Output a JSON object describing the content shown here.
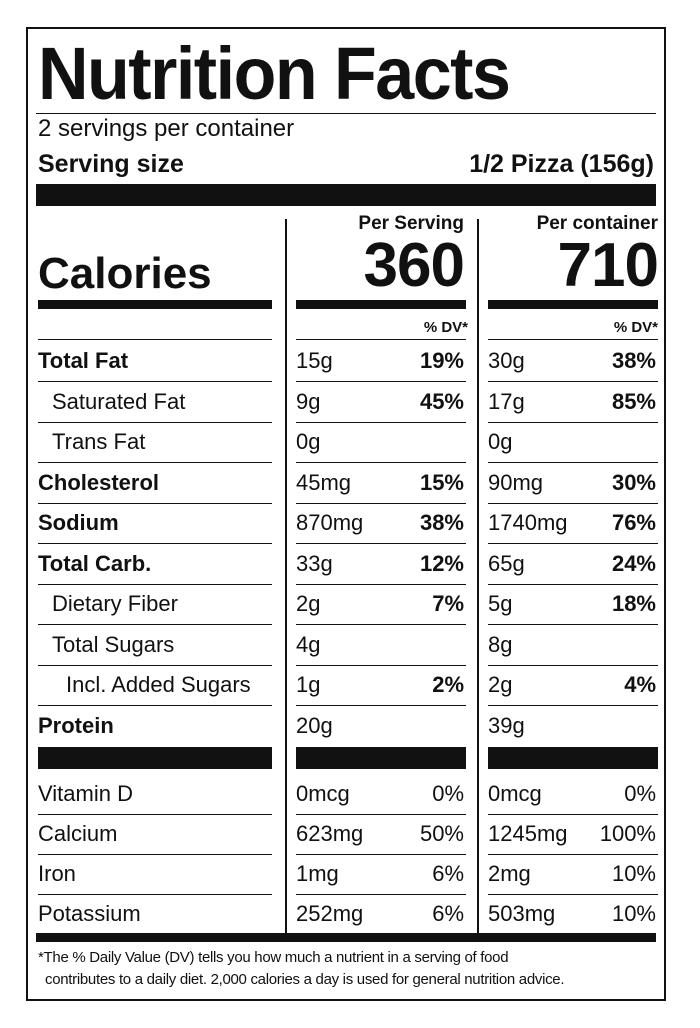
{
  "title": "Nutrition Facts",
  "servings_per_container": "2 servings per container",
  "serving_size_label": "Serving size",
  "serving_size_value": "1/2 Pizza (156g)",
  "calories_label": "Calories",
  "col_per_serving": "Per Serving",
  "col_per_container": "Per container",
  "calories_per_serving": "360",
  "calories_per_container": "710",
  "dv_header": "% DV*",
  "nutrients": [
    {
      "name": "Total Fat",
      "bold": true,
      "indent": 0,
      "s_amt": "15g",
      "s_dv": "19%",
      "c_amt": "30g",
      "c_dv": "38%"
    },
    {
      "name": "Saturated Fat",
      "bold": false,
      "indent": 1,
      "s_amt": "9g",
      "s_dv": "45%",
      "c_amt": "17g",
      "c_dv": "85%"
    },
    {
      "name": "Trans Fat",
      "bold": false,
      "indent": 1,
      "s_amt": "0g",
      "s_dv": "",
      "c_amt": "0g",
      "c_dv": ""
    },
    {
      "name": "Cholesterol",
      "bold": true,
      "indent": 0,
      "s_amt": "45mg",
      "s_dv": "15%",
      "c_amt": "90mg",
      "c_dv": "30%"
    },
    {
      "name": "Sodium",
      "bold": true,
      "indent": 0,
      "s_amt": "870mg",
      "s_dv": "38%",
      "c_amt": "1740mg",
      "c_dv": "76%"
    },
    {
      "name": "Total Carb.",
      "bold": true,
      "indent": 0,
      "s_amt": "33g",
      "s_dv": "12%",
      "c_amt": "65g",
      "c_dv": "24%"
    },
    {
      "name": "Dietary Fiber",
      "bold": false,
      "indent": 1,
      "s_amt": "2g",
      "s_dv": "7%",
      "c_amt": "5g",
      "c_dv": "18%"
    },
    {
      "name": "Total Sugars",
      "bold": false,
      "indent": 1,
      "s_amt": "4g",
      "s_dv": "",
      "c_amt": "8g",
      "c_dv": ""
    },
    {
      "name": "Incl. Added Sugars",
      "bold": false,
      "indent": 2,
      "s_amt": "1g",
      "s_dv": "2%",
      "c_amt": "2g",
      "c_dv": "4%"
    },
    {
      "name": "Protein",
      "bold": true,
      "indent": 0,
      "s_amt": "20g",
      "s_dv": "",
      "c_amt": "39g",
      "c_dv": ""
    }
  ],
  "vitamins": [
    {
      "name": "Vitamin D",
      "s_amt": "0mcg",
      "s_dv": "0%",
      "c_amt": "0mcg",
      "c_dv": "0%"
    },
    {
      "name": "Calcium",
      "s_amt": "623mg",
      "s_dv": "50%",
      "c_amt": "1245mg",
      "c_dv": "100%"
    },
    {
      "name": "Iron",
      "s_amt": "1mg",
      "s_dv": "6%",
      "c_amt": "2mg",
      "c_dv": "10%"
    },
    {
      "name": "Potassium",
      "s_amt": "252mg",
      "s_dv": "6%",
      "c_amt": "503mg",
      "c_dv": "10%"
    }
  ],
  "footnote_line1": "*The % Daily Value (DV) tells you how much a nutrient in a serving of food",
  "footnote_line2": "contributes to a daily diet. 2,000 calories a day is used for general nutrition advice."
}
